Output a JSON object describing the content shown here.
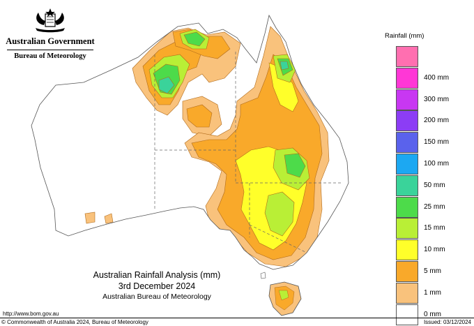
{
  "header": {
    "government": "Australian Government",
    "agency": "Bureau of Meteorology",
    "crest_icon": "coat-of-arms-icon"
  },
  "map": {
    "region": "Australia",
    "land_color": "#ffffff",
    "outline_color": "#555555",
    "state_border_style": "dashed"
  },
  "legend": {
    "title": "Rainfall (mm)",
    "bands": [
      {
        "label": "",
        "color": "#ff6fb0"
      },
      {
        "label": "400 mm",
        "color": "#ff37d6"
      },
      {
        "label": "300 mm",
        "color": "#c837f2"
      },
      {
        "label": "200 mm",
        "color": "#8c3df5"
      },
      {
        "label": "150 mm",
        "color": "#5a62ec"
      },
      {
        "label": "100 mm",
        "color": "#1ca8f2"
      },
      {
        "label": "50 mm",
        "color": "#3ad39a"
      },
      {
        "label": "25 mm",
        "color": "#4ddb4a"
      },
      {
        "label": "15 mm",
        "color": "#b9ef36"
      },
      {
        "label": "10 mm",
        "color": "#ffff2a"
      },
      {
        "label": "5 mm",
        "color": "#f9a92a"
      },
      {
        "label": "1 mm",
        "color": "#f9c27c"
      },
      {
        "label": "0 mm",
        "color": "#ffffff"
      }
    ]
  },
  "caption": {
    "title": "Australian Rainfall Analysis (mm)",
    "date": "3rd December 2024",
    "agency": "Australian Bureau of Meteorology"
  },
  "footer": {
    "url": "http://www.bom.gov.au",
    "copyright": "© Commonwealth of Australia 2024, Bureau of Meteorology",
    "issued": "Issued: 03/12/2024"
  }
}
